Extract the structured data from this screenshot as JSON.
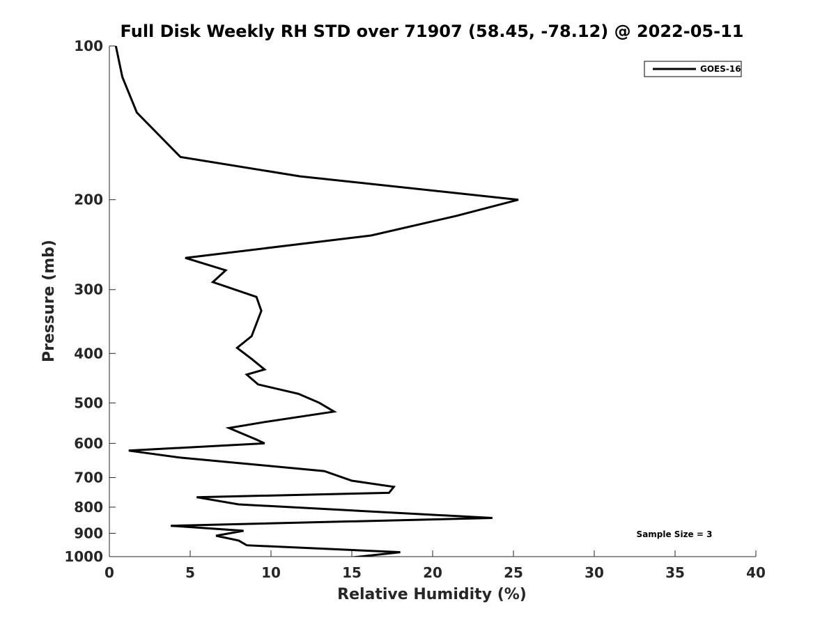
{
  "chart_data": {
    "type": "line",
    "title": "Full Disk Weekly RH STD over 71907 (58.45, -78.12) @ 2022-05-11",
    "xlabel": "Relative Humidity (%)",
    "ylabel": "Pressure (mb)",
    "xlim": [
      0,
      40
    ],
    "ylim": [
      100,
      1000
    ],
    "y_scale": "log",
    "y_reversed": true,
    "x_ticks": [
      0,
      5,
      10,
      15,
      20,
      25,
      30,
      35,
      40
    ],
    "y_ticks": [
      100,
      200,
      300,
      400,
      500,
      600,
      700,
      800,
      900,
      1000
    ],
    "grid": false,
    "legend_position": "top-right",
    "annotation": "Sample Size = 3",
    "series": [
      {
        "name": "GOES-16",
        "color": "#000000",
        "x": [
          0.4,
          0.8,
          1.7,
          4.4,
          11.8,
          25.3,
          21.5,
          16.2,
          4.7,
          7.2,
          6.4,
          9.1,
          9.4,
          8.8,
          7.9,
          8.8,
          9.6,
          8.5,
          9.2,
          11.7,
          13.0,
          13.9,
          9.6,
          7.4,
          9.1,
          9.6,
          1.2,
          4.4,
          13.3,
          15.0,
          17.6,
          17.3,
          5.4,
          8.0,
          23.7,
          3.8,
          8.3,
          6.6,
          8.0,
          8.5,
          18.0,
          14.2
        ],
        "y": [
          100,
          115,
          135,
          165,
          180,
          200,
          215,
          235,
          260,
          275,
          290,
          310,
          330,
          370,
          390,
          410,
          430,
          440,
          460,
          480,
          500,
          520,
          545,
          560,
          590,
          600,
          620,
          640,
          680,
          710,
          730,
          750,
          765,
          790,
          840,
          870,
          890,
          910,
          930,
          950,
          980,
          1010
        ]
      }
    ]
  }
}
